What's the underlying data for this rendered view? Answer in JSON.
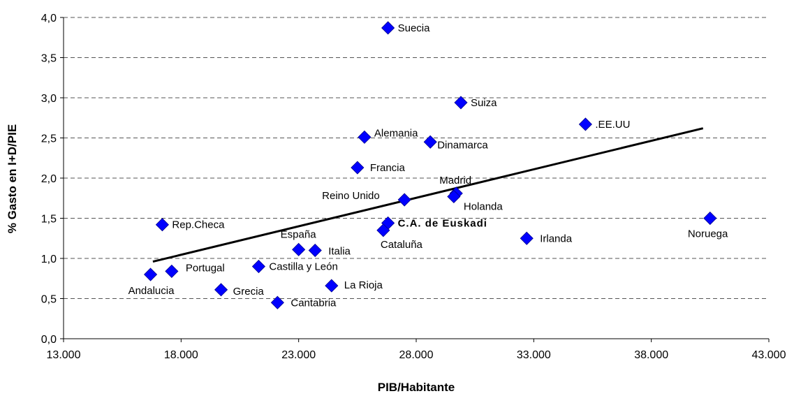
{
  "chart_data": {
    "type": "scatter",
    "xlabel": "PIB/Habitante",
    "ylabel": "% Gasto en I+D/PIE",
    "xlim": [
      13000,
      43000
    ],
    "ylim": [
      0,
      4
    ],
    "x_ticks": [
      13000,
      18000,
      23000,
      28000,
      33000,
      38000,
      43000
    ],
    "x_tick_labels": [
      "13.000",
      "18.000",
      "23.000",
      "28.000",
      "33.000",
      "38.000",
      "43.000"
    ],
    "y_ticks": [
      0,
      0.5,
      1,
      1.5,
      2,
      2.5,
      3,
      3.5,
      4
    ],
    "y_tick_labels": [
      "0,0",
      "0,5",
      "1,0",
      "1,5",
      "2,0",
      "2,5",
      "3,0",
      "3,5",
      "4,0"
    ],
    "grid": "horizontal dashed",
    "marker_color": "#0000FF",
    "trendline_color": "#000000",
    "trendline": {
      "x": [
        16800,
        40200
      ],
      "y": [
        0.96,
        2.62
      ]
    },
    "points": [
      {
        "label": "Suecia",
        "x": 26800,
        "y": 3.87
      },
      {
        "label": "Suiza",
        "x": 29900,
        "y": 2.94
      },
      {
        "label": ".EE.UU",
        "x": 35200,
        "y": 2.67
      },
      {
        "label": "Alemania",
        "x": 25800,
        "y": 2.51
      },
      {
        "label": "Dinamarca",
        "x": 28600,
        "y": 2.45
      },
      {
        "label": "Francia",
        "x": 25500,
        "y": 2.13
      },
      {
        "label": "Madrid",
        "x": 29700,
        "y": 1.81
      },
      {
        "label": "Holanda",
        "x": 29600,
        "y": 1.77
      },
      {
        "label": "Reino Unido",
        "x": 27500,
        "y": 1.73
      },
      {
        "label": "Rep.Checa",
        "x": 17200,
        "y": 1.42
      },
      {
        "label": "C.A. de Euskadi",
        "x": 26800,
        "y": 1.44,
        "bold": true
      },
      {
        "label": "Cataluña",
        "x": 26600,
        "y": 1.35
      },
      {
        "label": "Noruega",
        "x": 40500,
        "y": 1.5
      },
      {
        "label": "Irlanda",
        "x": 32700,
        "y": 1.25
      },
      {
        "label": "España",
        "x": 23000,
        "y": 1.11
      },
      {
        "label": "Italia",
        "x": 23700,
        "y": 1.1
      },
      {
        "label": "Castilla y León",
        "x": 21300,
        "y": 0.9
      },
      {
        "label": "Portugal",
        "x": 17600,
        "y": 0.84
      },
      {
        "label": "Andalucia",
        "x": 16700,
        "y": 0.8
      },
      {
        "label": "La Rioja",
        "x": 24400,
        "y": 0.66
      },
      {
        "label": "Grecia",
        "x": 19700,
        "y": 0.61
      },
      {
        "label": "Cantabria",
        "x": 22100,
        "y": 0.45
      }
    ]
  }
}
